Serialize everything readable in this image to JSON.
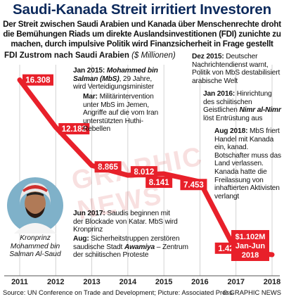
{
  "title": "Saudi-Kanada Streit irritiert Investoren",
  "subtitle": "Der Streit zwischen Saudi Arabien und Kanada über Menschenrechte droht die Bemühungen Riads um direkte Auslandsinvestitionen (FDI) zunichte zu machen, durch impulsive Politik wird Finanzsicherheit in Frage gestellt",
  "chart_label": "FDI Zustrom nach Saudi Arabien",
  "chart_unit": "($ Millionen)",
  "watermark": "GRAPHIC NEWS",
  "colors": {
    "line": "#e8202a",
    "title": "#0d2a5c",
    "grid": "#c8c8c8"
  },
  "icons": {
    "avatar": "portrait-icon"
  },
  "caption": [
    "Kronprinz",
    "Mohammed bin",
    "Salman Al-Saud"
  ],
  "annotations": {
    "jan2015": {
      "date": "Jan 2015:",
      "name": "Mohammed bin Salman (MbS)",
      "text": ", 29 Jahre, wird Verteidigungsminister"
    },
    "mar": {
      "date": "Mar:",
      "text": "Militärintervention unter MbS im Jemen, Angriffe auf die vom Iran unterstützten Huthi-Rebellen"
    },
    "dec2015": {
      "date": "Dez 2015:",
      "text": "Deutscher Nachrichtendienst warnt, Politik von MbS destabilisiert arabische Welt"
    },
    "jan2016": {
      "date": "Jan 2016:",
      "text1": "Hinrichtung des schiitischen Geistlichen ",
      "name": "Nimr al-Nimr",
      "text2": " löst Entrüstung aus"
    },
    "aug2018": {
      "date": "Aug 2018:",
      "text": "MbS friert Handel mit Kanada ein, kanad. Botschafter muss das Land verlassen. Kanada hatte die Freilassung von inhaftierten Aktivisten verlangt"
    },
    "jun2017": {
      "date": "Jun 2017:",
      "text": "Saudis beginnen mit der Blockade von Katar. MbS wird Kronprinz"
    },
    "aug2017": {
      "date": "Aug:",
      "text1": "Sicherheitstruppen zerstören saudische Stadt ",
      "name": "Awamiya",
      "text2": " – Zentrum der schiitischen Proteste"
    }
  },
  "chart_data": {
    "type": "line",
    "x": [
      2011,
      2012,
      2013,
      2014,
      2015,
      2016,
      2017,
      2018
    ],
    "series": [
      {
        "values": [
          16308,
          12182,
          8865,
          8012,
          8141,
          7453,
          1421,
          1102
        ]
      }
    ],
    "data_labels": [
      "16.308",
      "12.182",
      "8.865",
      "8.012",
      "8.141",
      "7.453",
      "1.421",
      "$1.102M"
    ],
    "last_label_sub": "Jan-Jun",
    "last_label_year": "2018",
    "xtick_labels": [
      "2011",
      "2012",
      "2013",
      "2014",
      "2015",
      "2016",
      "2017",
      "2018"
    ],
    "xlim": [
      2011,
      2018
    ],
    "ylim": [
      0,
      18000
    ],
    "grid": "vertical"
  },
  "source": "Source: UN Conference on Trade and Development",
  "photo_credit": "Picture: Associated Press",
  "copyright": "© GRAPHIC NEWS"
}
